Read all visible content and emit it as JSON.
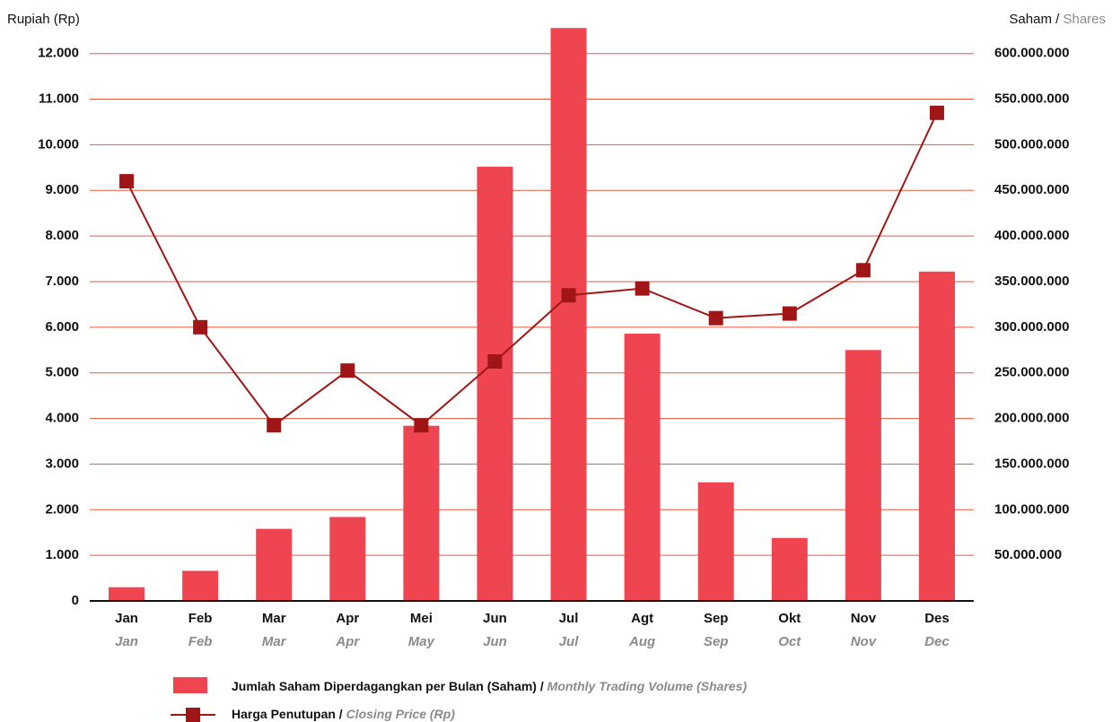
{
  "chart_data": {
    "type": "bar-line",
    "ylabel": "Rupiah (Rp)",
    "y2label": "Saham",
    "y2label_translation": "Shares",
    "separator": "/",
    "categories": [
      "Jan",
      "Feb",
      "Mar",
      "Apr",
      "Mei",
      "Jun",
      "Jul",
      "Agt",
      "Sep",
      "Okt",
      "Nov",
      "Des"
    ],
    "categories_translation": [
      "Jan",
      "Feb",
      "Mar",
      "Apr",
      "May",
      "Jun",
      "Jul",
      "Aug",
      "Sep",
      "Oct",
      "Nov",
      "Dec"
    ],
    "ylim": [
      0,
      12800
    ],
    "yticks": [
      {
        "value": 0,
        "label": "0"
      },
      {
        "value": 1000,
        "label": "1.000"
      },
      {
        "value": 2000,
        "label": "2.000"
      },
      {
        "value": 3000,
        "label": "3.000"
      },
      {
        "value": 4000,
        "label": "4.000"
      },
      {
        "value": 5000,
        "label": "5.000"
      },
      {
        "value": 6000,
        "label": "6.000"
      },
      {
        "value": 7000,
        "label": "7.000"
      },
      {
        "value": 8000,
        "label": "8.000"
      },
      {
        "value": 9000,
        "label": "9.000"
      },
      {
        "value": 10000,
        "label": "10.000"
      },
      {
        "value": 11000,
        "label": "11.000"
      },
      {
        "value": 12000,
        "label": "12.000"
      }
    ],
    "y2lim": [
      0,
      640000000
    ],
    "y2ticks": [
      {
        "value": 50000000,
        "label": "50.000.000"
      },
      {
        "value": 100000000,
        "label": "100.000.000"
      },
      {
        "value": 150000000,
        "label": "150.000.000"
      },
      {
        "value": 200000000,
        "label": "200.000.000"
      },
      {
        "value": 250000000,
        "label": "250.000.000"
      },
      {
        "value": 300000000,
        "label": "300.000.000"
      },
      {
        "value": 350000000,
        "label": "350.000.000"
      },
      {
        "value": 400000000,
        "label": "400.000.000"
      },
      {
        "value": 450000000,
        "label": "450.000.000"
      },
      {
        "value": 500000000,
        "label": "500.000.000"
      },
      {
        "value": 550000000,
        "label": "550.000.000"
      },
      {
        "value": 600000000,
        "label": "600.000.000"
      }
    ],
    "grid": true,
    "grid_color": "#e8583e",
    "series": [
      {
        "name": "Jumlah Saham Diperdagangkan per Bulan (Saham)",
        "name_translation": "Monthly  Trading Volume (Shares)",
        "type": "bar",
        "axis": "y2",
        "color": "#ef4551",
        "values": [
          15000000,
          33000000,
          79000000,
          92000000,
          192000000,
          476000000,
          628000000,
          293000000,
          130000000,
          69000000,
          275000000,
          361000000
        ]
      },
      {
        "name": "Harga Penutupan",
        "name_translation": "Closing Price (Rp)",
        "type": "line",
        "axis": "y",
        "color": "#a01616",
        "values": [
          9200,
          6000,
          3850,
          5050,
          3850,
          5250,
          6700,
          6850,
          6200,
          6300,
          7250,
          10700
        ]
      }
    ]
  }
}
